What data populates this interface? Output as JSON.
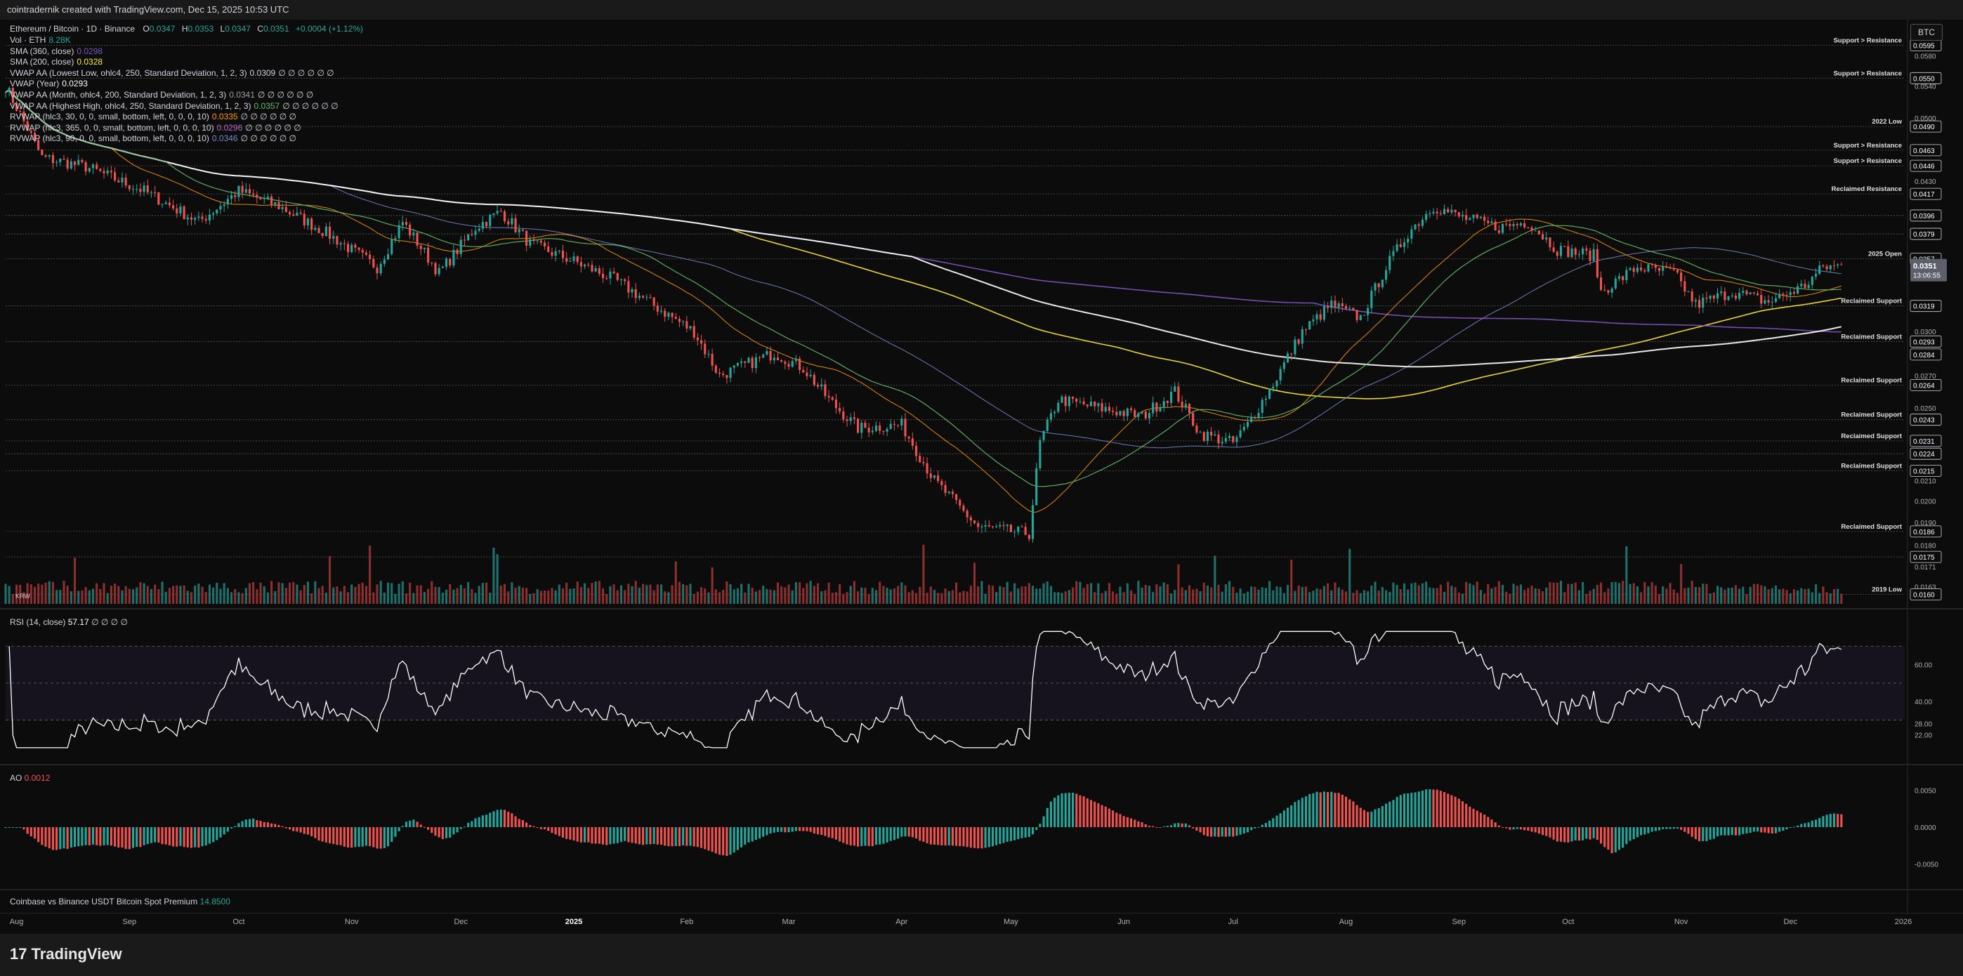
{
  "header": {
    "created": "cointradernik created with TradingView.com, Dec 15, 2025 10:53 UTC"
  },
  "symbol": {
    "title": "Ethereum / Bitcoin · 1D · Binance",
    "o_label": "O",
    "o": "0.0347",
    "h_label": "H",
    "h": "0.0353",
    "l_label": "L",
    "l": "0.0347",
    "c_label": "C",
    "c": "0.0351",
    "chg": "+0.0004 (+1.12%)"
  },
  "indicators": [
    {
      "label": "Vol · ETH",
      "value": "8.28K",
      "color": "#26a69a",
      "extra": ""
    },
    {
      "label": "SMA (360, close)",
      "value": "0.0298",
      "color": "#7e57c2",
      "extra": ""
    },
    {
      "label": "SMA (200, close)",
      "value": "0.0328",
      "color": "#ffeb3b",
      "extra": ""
    },
    {
      "label": "VWAP AA (Lowest Low, ohlc4, 250, Standard Deviation, 1, 2, 3)",
      "value": "0.0309",
      "color": "#d1d4dc",
      "extra": "∅ ∅ ∅ ∅ ∅ ∅"
    },
    {
      "label": "VWAP (Year)",
      "value": "0.0293",
      "color": "#ffffff",
      "extra": ""
    },
    {
      "label": "VWAP AA (Month, ohlc4, 200, Standard Deviation, 1, 2, 3)",
      "value": "0.0341",
      "color": "#9e9e9e",
      "extra": "∅ ∅ ∅ ∅ ∅ ∅"
    },
    {
      "label": "VWAP AA (Highest High, ohlc4, 250, Standard Deviation, 1, 2, 3)",
      "value": "0.0357",
      "color": "#66bb6a",
      "extra": "∅ ∅ ∅ ∅ ∅ ∅"
    },
    {
      "label": "RVWAP (hlc3, 30, 0, 0, small, bottom, left, 0, 0, 0, 10)",
      "value": "0.0335",
      "color": "#ff9800",
      "extra": "∅ ∅ ∅ ∅ ∅ ∅"
    },
    {
      "label": "RVWAP (hlc3, 365, 0, 0, small, bottom, left, 0, 0, 0, 10)",
      "value": "0.0296",
      "color": "#ba68c8",
      "extra": "∅ ∅ ∅ ∅ ∅ ∅"
    },
    {
      "label": "RVWAP (hlc3, 90, 0, 0, small, bottom, left, 0, 0, 0, 10)",
      "value": "0.0346",
      "color": "#7986cb",
      "extra": "∅ ∅ ∅ ∅ ∅ ∅"
    }
  ],
  "currency_button": "BTC",
  "chart_data": {
    "type": "candlestick",
    "x_labels": [
      "Aug",
      "Sep",
      "Oct",
      "Nov",
      "Dec",
      "2025",
      "Feb",
      "Mar",
      "Apr",
      "May",
      "Jun",
      "Jul",
      "Aug",
      "Sep",
      "Oct",
      "Nov",
      "Dec",
      "2026"
    ],
    "price_ticks": [
      "0.0580",
      "0.0540",
      "0.0500",
      "0.0430",
      "0.0380",
      "0.0300",
      "0.0285",
      "0.0270",
      "0.0250",
      "0.0210",
      "0.0200",
      "0.0190",
      "0.0180",
      "0.0171",
      "0.0163"
    ],
    "price_scale": "log",
    "price_axis_range": [
      0.0158,
      0.062
    ],
    "levels": [
      {
        "price": "0.0595",
        "label": "Support > Resistance"
      },
      {
        "price": "0.0550",
        "label": "Support > Resistance"
      },
      {
        "price": "0.0490",
        "label": "2022 Low"
      },
      {
        "price": "0.0463",
        "label": "Support > Resistance"
      },
      {
        "price": "0.0446",
        "label": "Support > Resistance"
      },
      {
        "price": "0.0417",
        "label": "Reclaimed Resistance"
      },
      {
        "price": "0.0396",
        "label": ""
      },
      {
        "price": "0.0379",
        "label": ""
      },
      {
        "price": "0.0357",
        "label": "2025 Open"
      },
      {
        "price": "0.0319",
        "label": "Reclaimed Support"
      },
      {
        "price": "0.0293",
        "label": "Reclaimed Support"
      },
      {
        "price": "0.0264",
        "label": "Reclaimed Support"
      },
      {
        "price": "0.0243",
        "label": "Reclaimed Support"
      },
      {
        "price": "0.0231",
        "label": "Reclaimed Support"
      },
      {
        "price": "0.0224",
        "label": ""
      },
      {
        "price": "0.0215",
        "label": "Reclaimed Support"
      },
      {
        "price": "0.0186",
        "label": "Reclaimed Support"
      },
      {
        "price": "0.0175",
        "label": ""
      },
      {
        "price": "0.0160",
        "label": "2019 Low"
      }
    ],
    "extra_price_tags": [
      "0.0284"
    ],
    "current_price": {
      "value": "0.0351",
      "countdown": "13:06:55"
    },
    "anchors": [
      [
        "2024-07-29",
        0.054
      ],
      [
        "2024-08-08",
        0.0455
      ],
      [
        "2024-08-20",
        0.0445
      ],
      [
        "2024-09-05",
        0.042
      ],
      [
        "2024-09-20",
        0.039
      ],
      [
        "2024-10-01",
        0.042
      ],
      [
        "2024-10-12",
        0.0405
      ],
      [
        "2024-10-25",
        0.038
      ],
      [
        "2024-11-08",
        0.035
      ],
      [
        "2024-11-15",
        0.039
      ],
      [
        "2024-11-25",
        0.0345
      ],
      [
        "2024-12-05",
        0.0385
      ],
      [
        "2024-12-12",
        0.04
      ],
      [
        "2024-12-20",
        0.037
      ],
      [
        "2025-01-01",
        0.0355
      ],
      [
        "2025-01-12",
        0.034
      ],
      [
        "2025-01-20",
        0.0325
      ],
      [
        "2025-02-03",
        0.03
      ],
      [
        "2025-02-10",
        0.027
      ],
      [
        "2025-02-25",
        0.0285
      ],
      [
        "2025-03-05",
        0.0275
      ],
      [
        "2025-03-12",
        0.0255
      ],
      [
        "2025-03-20",
        0.0238
      ],
      [
        "2025-04-01",
        0.024
      ],
      [
        "2025-04-10",
        0.021
      ],
      [
        "2025-04-22",
        0.0188
      ],
      [
        "2025-05-06",
        0.0185
      ],
      [
        "2025-05-09",
        0.023
      ],
      [
        "2025-05-14",
        0.0255
      ],
      [
        "2025-05-25",
        0.025
      ],
      [
        "2025-06-06",
        0.0245
      ],
      [
        "2025-06-15",
        0.026
      ],
      [
        "2025-06-22",
        0.0235
      ],
      [
        "2025-07-01",
        0.023
      ],
      [
        "2025-07-05",
        0.024
      ],
      [
        "2025-07-12",
        0.0265
      ],
      [
        "2025-07-20",
        0.03
      ],
      [
        "2025-07-28",
        0.032
      ],
      [
        "2025-08-05",
        0.031
      ],
      [
        "2025-08-12",
        0.035
      ],
      [
        "2025-08-18",
        0.038
      ],
      [
        "2025-08-25",
        0.0405
      ],
      [
        "2025-09-01",
        0.0395
      ],
      [
        "2025-09-12",
        0.0385
      ],
      [
        "2025-09-20",
        0.039
      ],
      [
        "2025-09-28",
        0.0365
      ],
      [
        "2025-10-08",
        0.036
      ],
      [
        "2025-10-10",
        0.033
      ],
      [
        "2025-10-20",
        0.035
      ],
      [
        "2025-10-30",
        0.0345
      ],
      [
        "2025-11-05",
        0.032
      ],
      [
        "2025-11-15",
        0.033
      ],
      [
        "2025-11-25",
        0.0322
      ],
      [
        "2025-12-05",
        0.0335
      ],
      [
        "2025-12-10",
        0.035
      ],
      [
        "2025-12-15",
        0.0351
      ]
    ],
    "volume_label": "KRW",
    "rsi": {
      "label": "RSI (14, close)",
      "value": "57.17",
      "extra": "∅ ∅ ∅ ∅",
      "ticks": [
        "60.00",
        "40.00",
        "28.00",
        "22.00"
      ],
      "bands": [
        70,
        50,
        30
      ]
    },
    "ao": {
      "label": "AO",
      "value": "0.0012",
      "ticks": [
        "0.0050",
        "0.0000",
        "-0.0050"
      ]
    },
    "premium": {
      "label": "Coinbase vs Binance USDT Bitcoin Spot Premium",
      "value": "14.8500"
    }
  },
  "footer": {
    "brand": "TradingView",
    "logo_mark": "17"
  }
}
